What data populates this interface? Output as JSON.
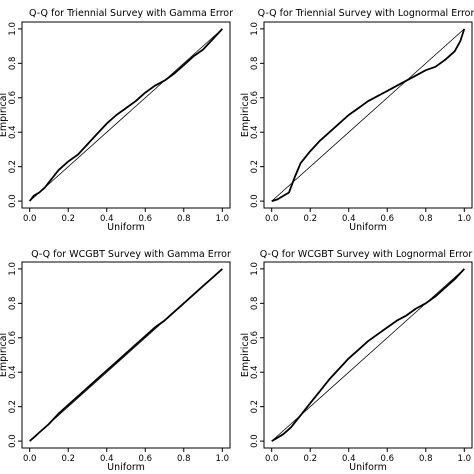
{
  "figure": {
    "colors": {
      "line": "#000000",
      "background": "#ffffff"
    }
  },
  "chart_data": [
    {
      "type": "line",
      "title": "Q-Q for Triennial Survey with Gamma Error",
      "xlabel": "Uniform",
      "ylabel": "Empirical",
      "xlim": [
        0,
        1
      ],
      "ylim": [
        0,
        1
      ],
      "x_ticks": [
        "0.0",
        "0.2",
        "0.4",
        "0.6",
        "0.8",
        "1.0"
      ],
      "y_ticks": [
        "0.0",
        "0.2",
        "0.4",
        "0.6",
        "0.8",
        "1.0"
      ],
      "grid": false,
      "reference_line": [
        [
          0,
          0
        ],
        [
          1,
          1
        ]
      ],
      "series": [
        {
          "x": [
            0,
            0.02,
            0.05,
            0.08,
            0.1,
            0.15,
            0.2,
            0.25,
            0.3,
            0.35,
            0.4,
            0.45,
            0.5,
            0.55,
            0.6,
            0.65,
            0.7,
            0.75,
            0.8,
            0.85,
            0.9,
            0.95,
            1.0
          ],
          "values": [
            0,
            0.03,
            0.05,
            0.08,
            0.11,
            0.18,
            0.23,
            0.27,
            0.33,
            0.39,
            0.45,
            0.5,
            0.54,
            0.58,
            0.63,
            0.67,
            0.7,
            0.74,
            0.79,
            0.84,
            0.88,
            0.94,
            1.0
          ]
        }
      ]
    },
    {
      "type": "line",
      "title": "Q-Q for Triennial Survey with Lognormal Error",
      "xlabel": "Uniform",
      "ylabel": "Empirical",
      "xlim": [
        0,
        1
      ],
      "ylim": [
        0,
        1
      ],
      "x_ticks": [
        "0.0",
        "0.2",
        "0.4",
        "0.6",
        "0.8",
        "1.0"
      ],
      "y_ticks": [
        "0.0",
        "0.2",
        "0.4",
        "0.6",
        "0.8",
        "1.0"
      ],
      "grid": false,
      "reference_line": [
        [
          0,
          0
        ],
        [
          1,
          1
        ]
      ],
      "series": [
        {
          "x": [
            0,
            0.03,
            0.06,
            0.09,
            0.12,
            0.15,
            0.2,
            0.25,
            0.3,
            0.35,
            0.4,
            0.45,
            0.5,
            0.55,
            0.6,
            0.65,
            0.7,
            0.75,
            0.8,
            0.85,
            0.9,
            0.95,
            0.98,
            1.0
          ],
          "values": [
            0,
            0.01,
            0.03,
            0.05,
            0.14,
            0.22,
            0.29,
            0.35,
            0.4,
            0.45,
            0.5,
            0.54,
            0.58,
            0.61,
            0.64,
            0.67,
            0.7,
            0.73,
            0.76,
            0.78,
            0.82,
            0.87,
            0.93,
            1.0
          ]
        }
      ]
    },
    {
      "type": "line",
      "title": "Q-Q for WCGBT Survey with Gamma Error",
      "xlabel": "Uniform",
      "ylabel": "Empirical",
      "xlim": [
        0,
        1
      ],
      "ylim": [
        0,
        1
      ],
      "x_ticks": [
        "0.0",
        "0.2",
        "0.4",
        "0.6",
        "0.8",
        "1.0"
      ],
      "y_ticks": [
        "0.0",
        "0.2",
        "0.4",
        "0.6",
        "0.8",
        "1.0"
      ],
      "grid": false,
      "reference_line": [
        [
          0,
          0
        ],
        [
          1,
          1
        ]
      ],
      "series": [
        {
          "x": [
            0,
            0.02,
            0.05,
            0.1,
            0.15,
            0.2,
            0.25,
            0.3,
            0.35,
            0.4,
            0.45,
            0.5,
            0.55,
            0.6,
            0.65,
            0.7,
            0.75,
            0.8,
            0.85,
            0.9,
            0.95,
            1.0
          ],
          "values": [
            0,
            0.02,
            0.05,
            0.1,
            0.16,
            0.21,
            0.26,
            0.31,
            0.36,
            0.41,
            0.46,
            0.51,
            0.56,
            0.61,
            0.66,
            0.7,
            0.75,
            0.8,
            0.85,
            0.9,
            0.95,
            1.0
          ]
        }
      ]
    },
    {
      "type": "line",
      "title": "Q-Q for WCGBT Survey with Lognormal Error",
      "xlabel": "Uniform",
      "ylabel": "Empirical",
      "xlim": [
        0,
        1
      ],
      "ylim": [
        0,
        1
      ],
      "x_ticks": [
        "0.0",
        "0.2",
        "0.4",
        "0.6",
        "0.8",
        "1.0"
      ],
      "y_ticks": [
        "0.0",
        "0.2",
        "0.4",
        "0.6",
        "0.8",
        "1.0"
      ],
      "grid": false,
      "reference_line": [
        [
          0,
          0
        ],
        [
          1,
          1
        ]
      ],
      "series": [
        {
          "x": [
            0,
            0.03,
            0.06,
            0.1,
            0.15,
            0.2,
            0.25,
            0.3,
            0.35,
            0.4,
            0.45,
            0.5,
            0.55,
            0.6,
            0.65,
            0.7,
            0.75,
            0.8,
            0.85,
            0.9,
            0.95,
            1.0
          ],
          "values": [
            0,
            0.02,
            0.04,
            0.08,
            0.15,
            0.22,
            0.29,
            0.36,
            0.42,
            0.48,
            0.53,
            0.58,
            0.62,
            0.66,
            0.7,
            0.73,
            0.77,
            0.8,
            0.84,
            0.89,
            0.94,
            1.0
          ]
        }
      ]
    }
  ]
}
